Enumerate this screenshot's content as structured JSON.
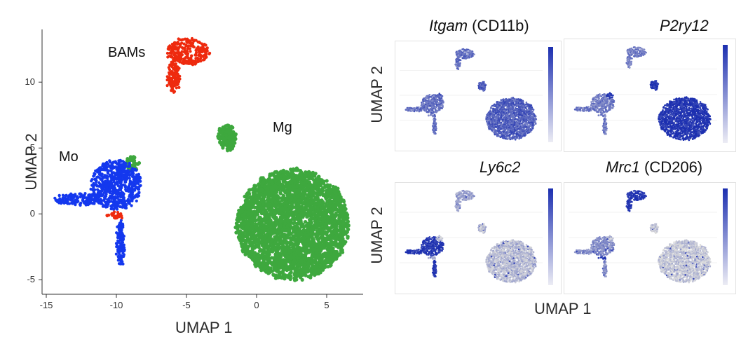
{
  "chart_data": [
    {
      "type": "scatter",
      "title": "",
      "xlabel": "UMAP 1",
      "ylabel": "UMAP 2",
      "xlim": [
        -15.3,
        7.6
      ],
      "ylim": [
        -6.1,
        14.0
      ],
      "xticks": [
        "-15",
        "-10",
        "-5",
        "0",
        "5"
      ],
      "xtick_values": [
        -15,
        -10,
        -5,
        0,
        5
      ],
      "yticks": [
        "-5",
        "0",
        "5",
        "10"
      ],
      "ytick_values": [
        -5,
        0,
        5,
        10
      ],
      "grid": false,
      "annotations": [
        {
          "text": "BAMs",
          "x": -5.0,
          "y": 12.5
        },
        {
          "text": "Mg",
          "x": 1.2,
          "y": 6.5
        },
        {
          "text": "Mo",
          "x": -13.3,
          "y": 2.2
        }
      ],
      "series": [
        {
          "color": "#ee2a0e",
          "clusters": [
            {
              "cx": -4.9,
              "cy": 12.3,
              "rx": 1.5,
              "ry": 1.0,
              "n": 260
            },
            {
              "cx": -5.9,
              "cy": 10.4,
              "rx": 0.45,
              "ry": 1.3,
              "n": 120
            },
            {
              "cx": -10.1,
              "cy": -0.1,
              "rx": 0.6,
              "ry": 0.25,
              "n": 30
            }
          ]
        },
        {
          "color": "#1438ee",
          "clusters": [
            {
              "cx": -10.0,
              "cy": 2.2,
              "rx": 1.8,
              "ry": 1.9,
              "n": 650
            },
            {
              "cx": -12.8,
              "cy": 1.1,
              "rx": 1.6,
              "ry": 0.45,
              "n": 160
            },
            {
              "cx": -9.7,
              "cy": -2.2,
              "rx": 0.25,
              "ry": 1.7,
              "n": 130
            }
          ]
        },
        {
          "color": "#3ea83e",
          "clusters": [
            {
              "cx": 2.6,
              "cy": -0.8,
              "rx": 4.0,
              "ry": 4.2,
              "n": 3200
            },
            {
              "cx": -2.1,
              "cy": 5.8,
              "rx": 0.6,
              "ry": 1.0,
              "n": 160
            },
            {
              "cx": -8.9,
              "cy": 3.8,
              "rx": 0.5,
              "ry": 0.6,
              "n": 50
            }
          ]
        }
      ]
    },
    {
      "type": "scatter",
      "title_italic": "Itgam",
      "title_rest": " (CD11b)",
      "ylabel": "UMAP 2",
      "style": "medium"
    },
    {
      "type": "scatter",
      "title_italic": "P2ry12",
      "title_rest": "",
      "style": "mg-high"
    },
    {
      "type": "scatter",
      "title_italic": "Ly6c2",
      "title_rest": "",
      "ylabel": "UMAP 2",
      "style": "mo-high"
    },
    {
      "type": "scatter",
      "title_italic": "Mrc1",
      "title_rest": " (CD206)",
      "style": "bam-high"
    },
    {
      "xlabel": "UMAP 1"
    }
  ],
  "colors": {
    "bams": "#ee2a0e",
    "mo": "#1438ee",
    "mg": "#3ea83e",
    "expr_high": "#1c2fb0",
    "expr_low": "#dcdcdc"
  }
}
